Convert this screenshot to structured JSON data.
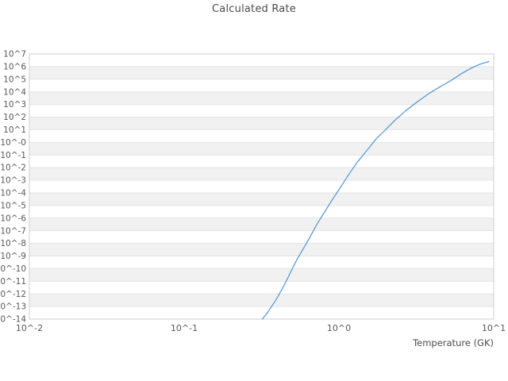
{
  "title": "Calculated Rate",
  "colors": {
    "line": "#5b9bd5",
    "band_gray": "#f1f1f1",
    "band_white": "#ffffff",
    "gridline": "#e4e4e4",
    "plot_border": "#cfcfcf",
    "tick_text": "#585858",
    "title_text": "#4c4c4c",
    "background": "#ffffff"
  },
  "chart_data": {
    "type": "line",
    "title": "Calculated Rate",
    "xlabel": "Temperature (GK)",
    "ylabel": "",
    "x_scale": "log",
    "y_scale": "log",
    "xlim": [
      0.01,
      10
    ],
    "ylim_log10": [
      -14,
      7
    ],
    "x_ticks": [
      {
        "value": 0.01,
        "label": "10^-2"
      },
      {
        "value": 0.1,
        "label": "10^-1"
      },
      {
        "value": 1,
        "label": "10^0"
      },
      {
        "value": 10,
        "label": "10^1"
      }
    ],
    "y_ticks": [
      {
        "exp": 7,
        "label": "10^7"
      },
      {
        "exp": 6,
        "label": "10^6"
      },
      {
        "exp": 5,
        "label": "10^5"
      },
      {
        "exp": 4,
        "label": "10^4"
      },
      {
        "exp": 3,
        "label": "10^3"
      },
      {
        "exp": 2,
        "label": "10^2"
      },
      {
        "exp": 1,
        "label": "10^1"
      },
      {
        "exp": 0,
        "label": "10^-0"
      },
      {
        "exp": -1,
        "label": "10^-1"
      },
      {
        "exp": -2,
        "label": "10^-2"
      },
      {
        "exp": -3,
        "label": "10^-3"
      },
      {
        "exp": -4,
        "label": "10^-4"
      },
      {
        "exp": -5,
        "label": "10^-5"
      },
      {
        "exp": -6,
        "label": "10^-6"
      },
      {
        "exp": -7,
        "label": "10^-7"
      },
      {
        "exp": -8,
        "label": "10^-8"
      },
      {
        "exp": -9,
        "label": "10^-9"
      },
      {
        "exp": -10,
        "label": "10^-10"
      },
      {
        "exp": -11,
        "label": "10^-11"
      },
      {
        "exp": -12,
        "label": "10^-12"
      },
      {
        "exp": -13,
        "label": "10^-13"
      },
      {
        "exp": -14,
        "label": "10^-14"
      }
    ],
    "grid": "horizontal-decade-lines",
    "background_bands": "alternating-decade-stripes",
    "legend": "none",
    "series": [
      {
        "name": "Calculated Rate",
        "points_T_GK_vs_log10_rate": [
          [
            0.32,
            -14.0
          ],
          [
            0.345,
            -13.5
          ],
          [
            0.372,
            -12.9
          ],
          [
            0.4,
            -12.3
          ],
          [
            0.43,
            -11.6
          ],
          [
            0.465,
            -10.8
          ],
          [
            0.5,
            -10.0
          ],
          [
            0.54,
            -9.2
          ],
          [
            0.59,
            -8.4
          ],
          [
            0.65,
            -7.5
          ],
          [
            0.72,
            -6.5
          ],
          [
            0.8,
            -5.6
          ],
          [
            0.9,
            -4.6
          ],
          [
            1.0,
            -3.75
          ],
          [
            1.15,
            -2.6
          ],
          [
            1.3,
            -1.65
          ],
          [
            1.5,
            -0.7
          ],
          [
            1.75,
            0.3
          ],
          [
            2.0,
            1.0
          ],
          [
            2.3,
            1.75
          ],
          [
            2.7,
            2.5
          ],
          [
            3.2,
            3.2
          ],
          [
            3.8,
            3.85
          ],
          [
            4.5,
            4.4
          ],
          [
            5.3,
            4.9
          ],
          [
            6.2,
            5.45
          ],
          [
            7.2,
            5.9
          ],
          [
            8.2,
            6.2
          ],
          [
            9.3,
            6.4
          ]
        ]
      }
    ]
  }
}
